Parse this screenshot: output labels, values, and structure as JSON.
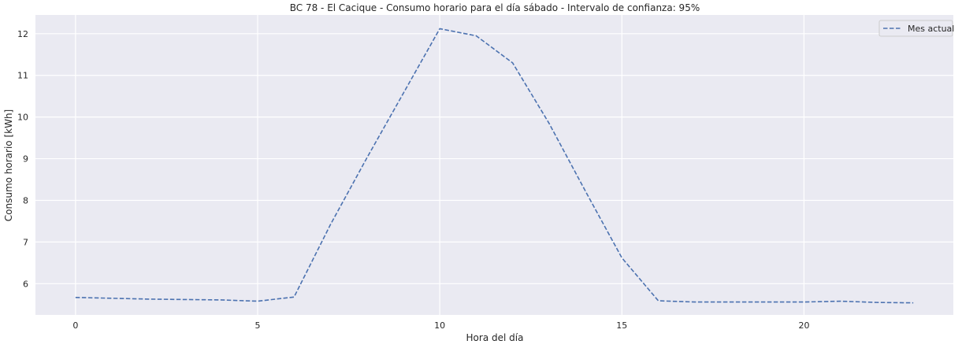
{
  "chart_data": {
    "type": "line",
    "title": "BC 78 - El Cacique - Consumo horario para el día sábado - Intervalo de confianza: 95%",
    "xlabel": "Hora del día",
    "ylabel": "Consumo horario [kWh]",
    "xlim": [
      -1.1,
      24.1
    ],
    "ylim": [
      5.25,
      12.45
    ],
    "xticks": [
      0,
      5,
      10,
      15,
      20
    ],
    "yticks": [
      6,
      7,
      8,
      9,
      10,
      11,
      12
    ],
    "grid": true,
    "legend_position": "top-right",
    "series": [
      {
        "name": "Mes actual",
        "style": "dashed",
        "color": "#4c72b0",
        "x": [
          0,
          1,
          2,
          3,
          4,
          5,
          6,
          7,
          8,
          9,
          10,
          11,
          12,
          13,
          14,
          15,
          16,
          17,
          18,
          19,
          20,
          21,
          22,
          23
        ],
        "y": [
          5.67,
          5.65,
          5.63,
          5.62,
          5.61,
          5.58,
          5.68,
          7.42,
          9.02,
          10.57,
          12.12,
          11.95,
          11.3,
          9.85,
          8.22,
          6.62,
          5.59,
          5.56,
          5.56,
          5.56,
          5.56,
          5.58,
          5.55,
          5.54
        ]
      }
    ]
  }
}
